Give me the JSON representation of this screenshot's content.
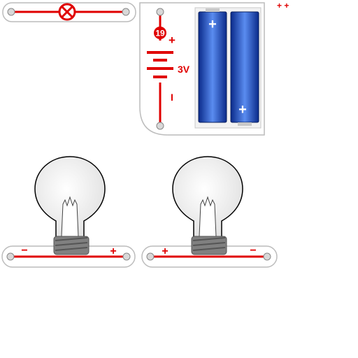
{
  "colors": {
    "wire": "#e00000",
    "strip": "#ffffff",
    "strip_border": "#bcbcbc",
    "snap": "#d8d8d8",
    "cell_dark": "#0a2a8a",
    "cell_light": "#4a7ee0",
    "glass": "#eeeeee",
    "base": "#808080"
  },
  "switch_part": {
    "icon": "lamp-x-icon"
  },
  "battery_part": {
    "number": "19",
    "voltage": "3V",
    "plus": "+",
    "minus": "I",
    "cell_plus": "+"
  },
  "corner_marks": {
    "text": "+ +"
  },
  "bulb_left": {
    "left_sign": "−",
    "right_sign": "+"
  },
  "bulb_right": {
    "left_sign": "+",
    "right_sign": "−"
  }
}
